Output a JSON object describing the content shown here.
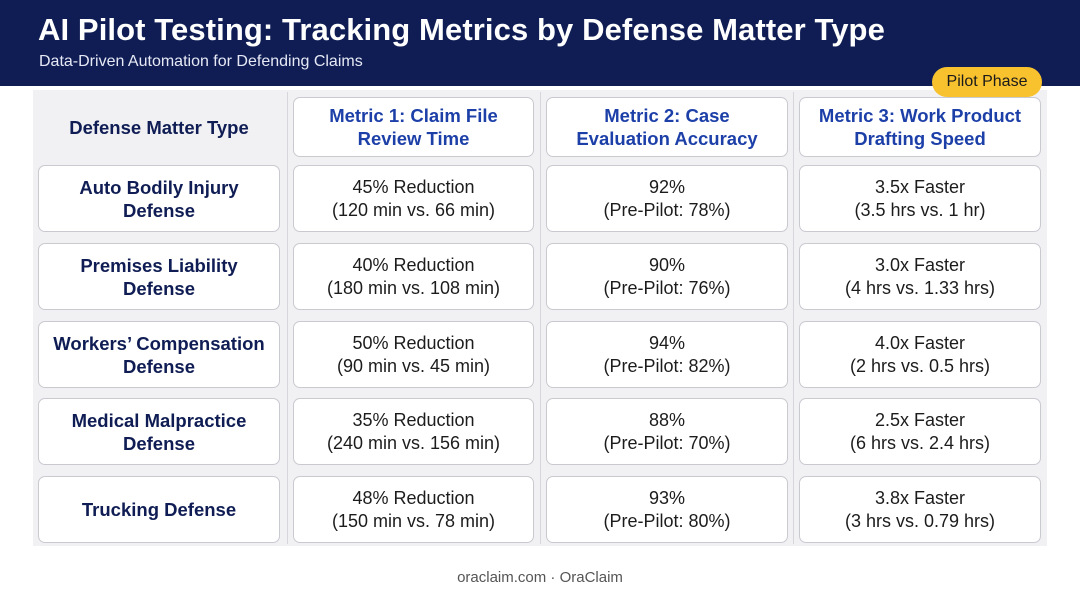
{
  "header": {
    "title": "AI Pilot Testing: Tracking Metrics by Defense Matter Type",
    "subtitle": "Data-Driven Automation for Defending Claims"
  },
  "badge": {
    "label": "Pilot Phase"
  },
  "table": {
    "corner_header": "Defense Matter Type",
    "column_headers": [
      [
        "Metric 1: Claim File",
        "Review Time"
      ],
      [
        "Metric 2: Case",
        "Evaluation Accuracy"
      ],
      [
        "Metric 3: Work Product",
        "Drafting Speed"
      ]
    ],
    "rows": [
      {
        "type": [
          "Auto Bodily Injury",
          "Defense"
        ],
        "cells": [
          [
            "45% Reduction",
            "(120 min vs. 66 min)"
          ],
          [
            "92%",
            "(Pre-Pilot: 78%)"
          ],
          [
            "3.5x Faster",
            "(3.5 hrs vs. 1 hr)"
          ]
        ]
      },
      {
        "type": [
          "Premises Liability",
          "Defense"
        ],
        "cells": [
          [
            "40% Reduction",
            "(180 min vs. 108 min)"
          ],
          [
            "90%",
            "(Pre-Pilot: 76%)"
          ],
          [
            "3.0x Faster",
            "(4 hrs vs. 1.33 hrs)"
          ]
        ]
      },
      {
        "type": [
          "Workers’ Compensation",
          "Defense"
        ],
        "cells": [
          [
            "50% Reduction",
            "(90 min vs. 45 min)"
          ],
          [
            "94%",
            "(Pre-Pilot: 82%)"
          ],
          [
            "4.0x Faster",
            "(2 hrs vs. 0.5 hrs)"
          ]
        ]
      },
      {
        "type": [
          "Medical Malpractice",
          "Defense"
        ],
        "cells": [
          [
            "35% Reduction",
            "(240 min vs. 156 min)"
          ],
          [
            "88%",
            "(Pre-Pilot: 70%)"
          ],
          [
            "2.5x Faster",
            "(6 hrs vs. 2.4 hrs)"
          ]
        ]
      },
      {
        "type": [
          "Trucking Defense"
        ],
        "cells": [
          [
            "48% Reduction",
            "(150 min vs. 78 min)"
          ],
          [
            "93%",
            "(Pre-Pilot: 80%)"
          ],
          [
            "3.8x Faster",
            "(3 hrs vs. 0.79 hrs)"
          ]
        ]
      }
    ]
  },
  "footer": {
    "text": "oraclaim.com · OraClaim"
  }
}
